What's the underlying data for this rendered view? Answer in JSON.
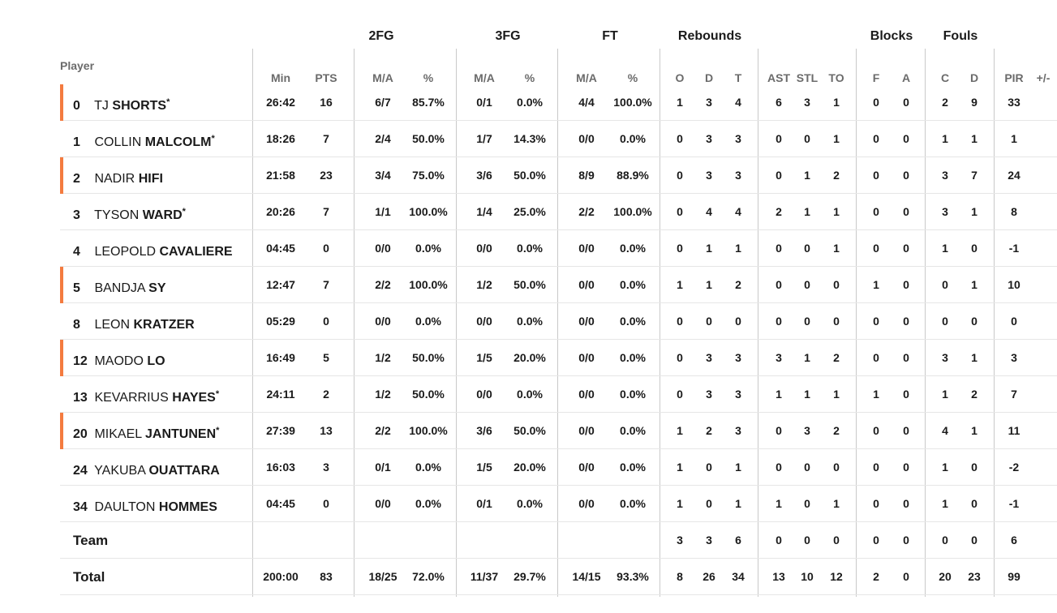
{
  "groups": {
    "fg2": "2FG",
    "fg3": "3FG",
    "ft": "FT",
    "rebounds": "Rebounds",
    "blocks": "Blocks",
    "fouls": "Fouls"
  },
  "player_header": "Player",
  "subheaders": {
    "min": "Min",
    "pts": "PTS",
    "fg2_ma": "M/A",
    "fg2_pct": "%",
    "fg3_ma": "M/A",
    "fg3_pct": "%",
    "ft_ma": "M/A",
    "ft_pct": "%",
    "reb_o": "O",
    "reb_d": "D",
    "reb_t": "T",
    "ast": "AST",
    "stl": "STL",
    "to": "TO",
    "blk_f": "F",
    "blk_a": "A",
    "foul_c": "C",
    "foul_d": "D",
    "pir": "PIR",
    "pm": "+/-"
  },
  "accent_color": "#f47b3f",
  "rows": [
    {
      "num": "0",
      "first": "TJ",
      "last": "SHORTS",
      "star": "*",
      "bar": true,
      "min": "26:42",
      "pts": "16",
      "fg2_ma": "6/7",
      "fg2_pct": "85.7%",
      "fg3_ma": "0/1",
      "fg3_pct": "0.0%",
      "ft_ma": "4/4",
      "ft_pct": "100.0%",
      "o": "1",
      "d": "3",
      "t": "4",
      "ast": "6",
      "stl": "3",
      "to": "1",
      "bf": "0",
      "ba": "0",
      "fc": "2",
      "fd": "9",
      "pir": "33",
      "pm": ""
    },
    {
      "num": "1",
      "first": "COLLIN",
      "last": "MALCOLM",
      "star": "*",
      "bar": false,
      "min": "18:26",
      "pts": "7",
      "fg2_ma": "2/4",
      "fg2_pct": "50.0%",
      "fg3_ma": "1/7",
      "fg3_pct": "14.3%",
      "ft_ma": "0/0",
      "ft_pct": "0.0%",
      "o": "0",
      "d": "3",
      "t": "3",
      "ast": "0",
      "stl": "0",
      "to": "1",
      "bf": "0",
      "ba": "0",
      "fc": "1",
      "fd": "1",
      "pir": "1",
      "pm": ""
    },
    {
      "num": "2",
      "first": "NADIR",
      "last": "HIFI",
      "star": "",
      "bar": true,
      "min": "21:58",
      "pts": "23",
      "fg2_ma": "3/4",
      "fg2_pct": "75.0%",
      "fg3_ma": "3/6",
      "fg3_pct": "50.0%",
      "ft_ma": "8/9",
      "ft_pct": "88.9%",
      "o": "0",
      "d": "3",
      "t": "3",
      "ast": "0",
      "stl": "1",
      "to": "2",
      "bf": "0",
      "ba": "0",
      "fc": "3",
      "fd": "7",
      "pir": "24",
      "pm": ""
    },
    {
      "num": "3",
      "first": "TYSON",
      "last": "WARD",
      "star": "*",
      "bar": false,
      "min": "20:26",
      "pts": "7",
      "fg2_ma": "1/1",
      "fg2_pct": "100.0%",
      "fg3_ma": "1/4",
      "fg3_pct": "25.0%",
      "ft_ma": "2/2",
      "ft_pct": "100.0%",
      "o": "0",
      "d": "4",
      "t": "4",
      "ast": "2",
      "stl": "1",
      "to": "1",
      "bf": "0",
      "ba": "0",
      "fc": "3",
      "fd": "1",
      "pir": "8",
      "pm": ""
    },
    {
      "num": "4",
      "first": "LEOPOLD",
      "last": "CAVALIERE",
      "star": "",
      "bar": false,
      "min": "04:45",
      "pts": "0",
      "fg2_ma": "0/0",
      "fg2_pct": "0.0%",
      "fg3_ma": "0/0",
      "fg3_pct": "0.0%",
      "ft_ma": "0/0",
      "ft_pct": "0.0%",
      "o": "0",
      "d": "1",
      "t": "1",
      "ast": "0",
      "stl": "0",
      "to": "1",
      "bf": "0",
      "ba": "0",
      "fc": "1",
      "fd": "0",
      "pir": "-1",
      "pm": ""
    },
    {
      "num": "5",
      "first": "BANDJA",
      "last": "SY",
      "star": "",
      "bar": true,
      "min": "12:47",
      "pts": "7",
      "fg2_ma": "2/2",
      "fg2_pct": "100.0%",
      "fg3_ma": "1/2",
      "fg3_pct": "50.0%",
      "ft_ma": "0/0",
      "ft_pct": "0.0%",
      "o": "1",
      "d": "1",
      "t": "2",
      "ast": "0",
      "stl": "0",
      "to": "0",
      "bf": "1",
      "ba": "0",
      "fc": "0",
      "fd": "1",
      "pir": "10",
      "pm": ""
    },
    {
      "num": "8",
      "first": "LEON",
      "last": "KRATZER",
      "star": "",
      "bar": false,
      "min": "05:29",
      "pts": "0",
      "fg2_ma": "0/0",
      "fg2_pct": "0.0%",
      "fg3_ma": "0/0",
      "fg3_pct": "0.0%",
      "ft_ma": "0/0",
      "ft_pct": "0.0%",
      "o": "0",
      "d": "0",
      "t": "0",
      "ast": "0",
      "stl": "0",
      "to": "0",
      "bf": "0",
      "ba": "0",
      "fc": "0",
      "fd": "0",
      "pir": "0",
      "pm": ""
    },
    {
      "num": "12",
      "first": "MAODO",
      "last": "LO",
      "star": "",
      "bar": true,
      "min": "16:49",
      "pts": "5",
      "fg2_ma": "1/2",
      "fg2_pct": "50.0%",
      "fg3_ma": "1/5",
      "fg3_pct": "20.0%",
      "ft_ma": "0/0",
      "ft_pct": "0.0%",
      "o": "0",
      "d": "3",
      "t": "3",
      "ast": "3",
      "stl": "1",
      "to": "2",
      "bf": "0",
      "ba": "0",
      "fc": "3",
      "fd": "1",
      "pir": "3",
      "pm": ""
    },
    {
      "num": "13",
      "first": "KEVARRIUS",
      "last": "HAYES",
      "star": "*",
      "bar": false,
      "min": "24:11",
      "pts": "2",
      "fg2_ma": "1/2",
      "fg2_pct": "50.0%",
      "fg3_ma": "0/0",
      "fg3_pct": "0.0%",
      "ft_ma": "0/0",
      "ft_pct": "0.0%",
      "o": "0",
      "d": "3",
      "t": "3",
      "ast": "1",
      "stl": "1",
      "to": "1",
      "bf": "1",
      "ba": "0",
      "fc": "1",
      "fd": "2",
      "pir": "7",
      "pm": ""
    },
    {
      "num": "20",
      "first": "MIKAEL",
      "last": "JANTUNEN",
      "star": "*",
      "bar": true,
      "min": "27:39",
      "pts": "13",
      "fg2_ma": "2/2",
      "fg2_pct": "100.0%",
      "fg3_ma": "3/6",
      "fg3_pct": "50.0%",
      "ft_ma": "0/0",
      "ft_pct": "0.0%",
      "o": "1",
      "d": "2",
      "t": "3",
      "ast": "0",
      "stl": "3",
      "to": "2",
      "bf": "0",
      "ba": "0",
      "fc": "4",
      "fd": "1",
      "pir": "11",
      "pm": ""
    },
    {
      "num": "24",
      "first": "YAKUBA",
      "last": "OUATTARA",
      "star": "",
      "bar": false,
      "min": "16:03",
      "pts": "3",
      "fg2_ma": "0/1",
      "fg2_pct": "0.0%",
      "fg3_ma": "1/5",
      "fg3_pct": "20.0%",
      "ft_ma": "0/0",
      "ft_pct": "0.0%",
      "o": "1",
      "d": "0",
      "t": "1",
      "ast": "0",
      "stl": "0",
      "to": "0",
      "bf": "0",
      "ba": "0",
      "fc": "1",
      "fd": "0",
      "pir": "-2",
      "pm": ""
    },
    {
      "num": "34",
      "first": "DAULTON",
      "last": "HOMMES",
      "star": "",
      "bar": false,
      "min": "04:45",
      "pts": "0",
      "fg2_ma": "0/0",
      "fg2_pct": "0.0%",
      "fg3_ma": "0/1",
      "fg3_pct": "0.0%",
      "ft_ma": "0/0",
      "ft_pct": "0.0%",
      "o": "1",
      "d": "0",
      "t": "1",
      "ast": "1",
      "stl": "0",
      "to": "1",
      "bf": "0",
      "ba": "0",
      "fc": "1",
      "fd": "0",
      "pir": "-1",
      "pm": ""
    }
  ],
  "team_row": {
    "label": "Team",
    "min": "",
    "pts": "",
    "fg2_ma": "",
    "fg2_pct": "",
    "fg3_ma": "",
    "fg3_pct": "",
    "ft_ma": "",
    "ft_pct": "",
    "o": "3",
    "d": "3",
    "t": "6",
    "ast": "0",
    "stl": "0",
    "to": "0",
    "bf": "0",
    "ba": "0",
    "fc": "0",
    "fd": "0",
    "pir": "6",
    "pm": ""
  },
  "total_row": {
    "label": "Total",
    "min": "200:00",
    "pts": "83",
    "fg2_ma": "18/25",
    "fg2_pct": "72.0%",
    "fg3_ma": "11/37",
    "fg3_pct": "29.7%",
    "ft_ma": "14/15",
    "ft_pct": "93.3%",
    "o": "8",
    "d": "26",
    "t": "34",
    "ast": "13",
    "stl": "10",
    "to": "12",
    "bf": "2",
    "ba": "0",
    "fc": "20",
    "fd": "23",
    "pir": "99",
    "pm": ""
  }
}
